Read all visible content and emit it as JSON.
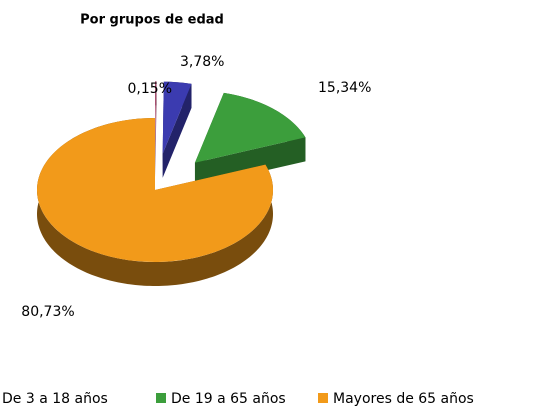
{
  "chart_data": {
    "type": "pie",
    "title": "Por grupos de edad",
    "categories": [
      null,
      "De 3 a 18 años",
      "De 19 a 65 años",
      "Mayores de 65 años"
    ],
    "values": [
      0.15,
      3.78,
      15.34,
      80.73
    ],
    "value_labels": [
      "0,15%",
      "3,78%",
      "15,34%",
      "80,73%"
    ],
    "colors": [
      "#a0305a",
      "#3b3bb0",
      "#3c9e3c",
      "#f29a1a"
    ],
    "exploded": [
      true,
      true,
      true,
      false
    ],
    "legend": "bottom"
  }
}
